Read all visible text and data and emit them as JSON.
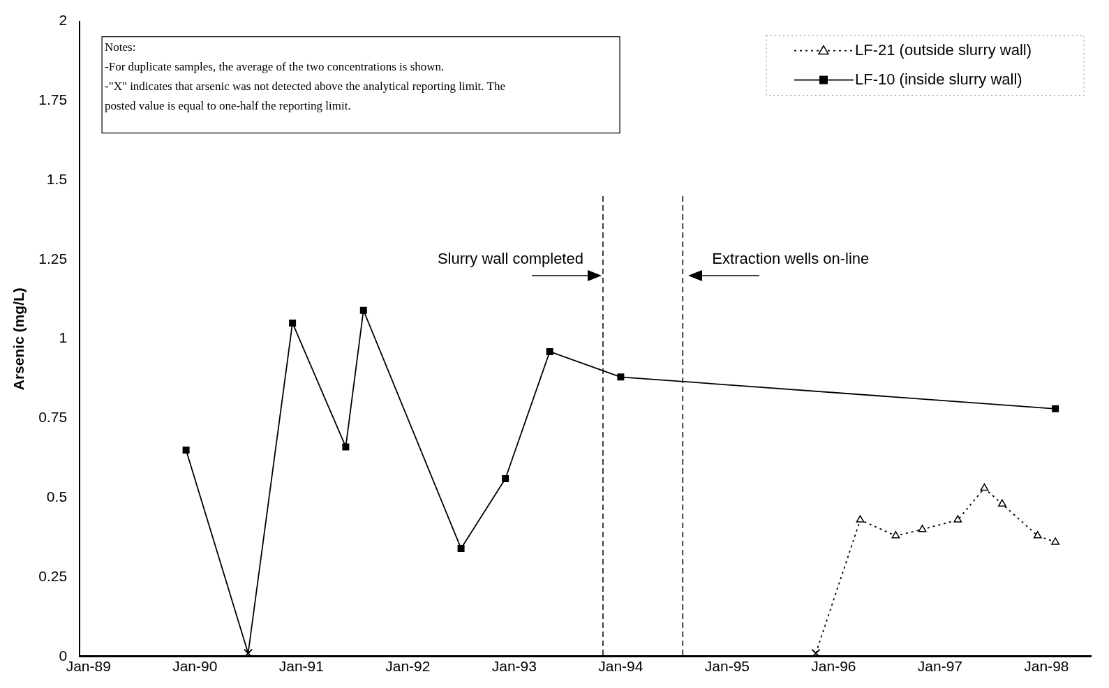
{
  "chart_data": {
    "type": "line",
    "ylabel": "Arsenic (mg/L)",
    "xlim": [
      "1988-12",
      "1998-06"
    ],
    "xticks": [
      {
        "value": "1989-01",
        "label": "Jan-89"
      },
      {
        "value": "1990-01",
        "label": "Jan-90"
      },
      {
        "value": "1991-01",
        "label": "Jan-91"
      },
      {
        "value": "1992-01",
        "label": "Jan-92"
      },
      {
        "value": "1993-01",
        "label": "Jan-93"
      },
      {
        "value": "1994-01",
        "label": "Jan-94"
      },
      {
        "value": "1995-01",
        "label": "Jan-95"
      },
      {
        "value": "1996-01",
        "label": "Jan-96"
      },
      {
        "value": "1997-01",
        "label": "Jan-97"
      },
      {
        "value": "1998-01",
        "label": "Jan-98"
      }
    ],
    "ylim": [
      0,
      2
    ],
    "yticks": [
      0,
      0.25,
      0.5,
      0.75,
      1,
      1.25,
      1.5,
      1.75,
      2
    ],
    "grid": false,
    "legend": "top right",
    "series": [
      {
        "name": "LF-21 (outside slurry wall)",
        "color": "#000000",
        "marker": "triangle",
        "line_style": "dotted",
        "x": [
          "1995-11",
          "1996-04",
          "1996-08",
          "1996-11",
          "1997-03",
          "1997-06",
          "1997-08",
          "1997-12",
          "1998-02"
        ],
        "values": [
          0.01,
          0.43,
          0.38,
          0.4,
          0.43,
          0.53,
          0.48,
          0.38,
          0.36
        ]
      },
      {
        "name": "LF-10 (inside slurry wall)",
        "color": "#000000",
        "marker": "square",
        "line_style": "solid",
        "x": [
          "1989-12",
          "1990-07",
          "1990-12",
          "1991-06",
          "1991-08",
          "1992-07",
          "1992-12",
          "1993-05",
          "1994-01",
          "1998-02"
        ],
        "values": [
          0.65,
          0.01,
          1.05,
          0.66,
          1.09,
          0.34,
          0.56,
          0.96,
          0.88,
          0.78
        ]
      },
      {
        "type": "scatter",
        "color": "#000000",
        "marker": "cross",
        "x": [
          "1990-07",
          "1995-11"
        ],
        "values": [
          0.01,
          0.01
        ]
      }
    ],
    "ref_lines": [
      {
        "axis": "x",
        "value": "1993-11",
        "label": "Slurry wall completed",
        "line_style": "dashed"
      },
      {
        "axis": "x",
        "value": "1994-08",
        "label": "Extraction wells on-line",
        "line_style": "dashed"
      }
    ],
    "annotations": [
      "Notes:\n-For duplicate samples, the average of the two concentrations is shown.\n-\"X\" indicates that arsenic was not detected above the analytical reporting limit. The\nposted value is equal to one-half the reporting limit."
    ]
  }
}
